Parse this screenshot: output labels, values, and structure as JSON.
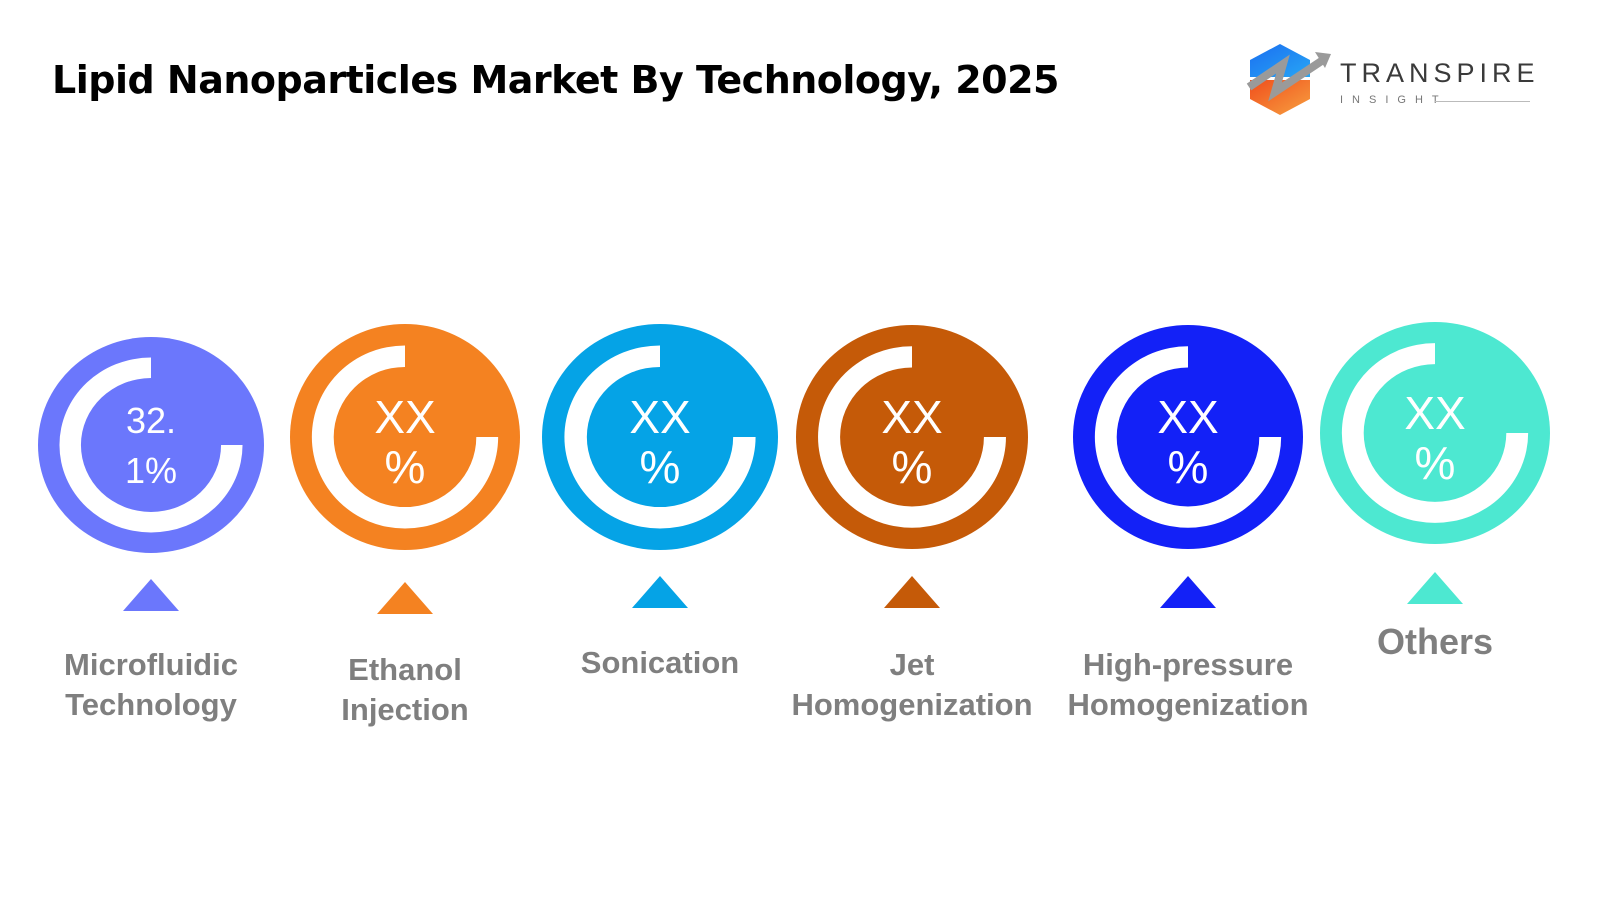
{
  "title": "Lipid Nanoparticles Market By Technology, 2025",
  "logo": {
    "name": "TRANSPIRE",
    "subtitle": "INSIGHT"
  },
  "chart_data": {
    "type": "donut-infographic",
    "title": "Lipid Nanoparticles Market By Technology, 2025",
    "categories": [
      "Microfluidic Technology",
      "Ethanol Injection",
      "Sonication",
      "Jet Homogenization",
      "High-pressure Homogenization",
      "Others"
    ],
    "label_lines": [
      [
        "Microfluidic",
        "Technology"
      ],
      [
        "Ethanol",
        "Injection"
      ],
      [
        "Sonication"
      ],
      [
        "Jet",
        "Homogenization"
      ],
      [
        "High-pressure",
        "Homogenization"
      ],
      [
        "Others"
      ]
    ],
    "values": [
      32.1,
      null,
      null,
      null,
      null,
      null
    ],
    "value_labels": [
      [
        "32.",
        "1%"
      ],
      [
        "XX",
        "%"
      ],
      [
        "XX",
        "%"
      ],
      [
        "XX",
        "%"
      ],
      [
        "XX",
        "%"
      ],
      [
        "XX",
        "%"
      ]
    ],
    "colors": [
      "#6B77FC",
      "#F48221",
      "#05A3E6",
      "#C55A08",
      "#1321F7",
      "#4DE8D1"
    ]
  }
}
